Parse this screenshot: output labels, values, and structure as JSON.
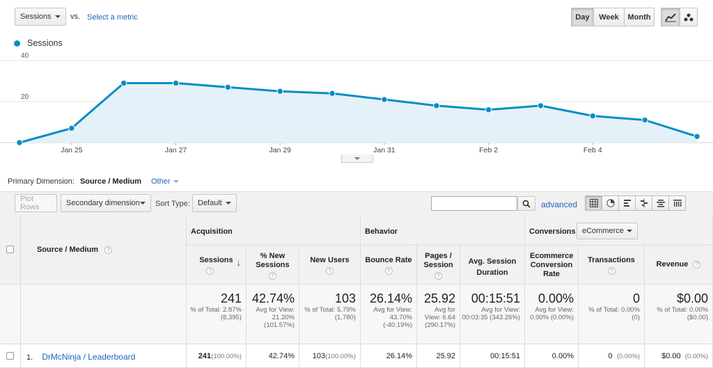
{
  "controls": {
    "metric": "Sessions",
    "vs": "vs.",
    "select_metric": "Select a metric",
    "period": [
      "Day",
      "Week",
      "Month"
    ],
    "active_period": "Day"
  },
  "legend": {
    "label": "Sessions",
    "color": "#058dc7"
  },
  "chart_data": {
    "type": "area",
    "series": [
      {
        "name": "Sessions",
        "values": [
          0,
          7,
          29,
          29,
          27,
          25,
          24,
          21,
          18,
          16,
          18,
          13,
          11,
          3
        ]
      }
    ],
    "x": [
      "Jan 24",
      "Jan 25",
      "Jan 26",
      "Jan 27",
      "Jan 28",
      "Jan 29",
      "Jan 30",
      "Jan 31",
      "Feb 1",
      "Feb 2",
      "Feb 3",
      "Feb 4",
      "Feb 5",
      "Feb 6"
    ],
    "tick_labels": [
      "Jan 25",
      "Jan 27",
      "Jan 29",
      "Jan 31",
      "Feb 2",
      "Feb 4"
    ],
    "y_ticks": [
      "40",
      "20"
    ],
    "ylim": [
      0,
      40
    ],
    "grid": true
  },
  "dimension": {
    "label": "Primary Dimension:",
    "current": "Source / Medium",
    "other": "Other"
  },
  "toolbar": {
    "plot_rows": "Plot Rows",
    "secondary_dimension": "Secondary dimension",
    "sort_type_label": "Sort Type:",
    "sort_value": "Default",
    "search_placeholder": "",
    "advanced": "advanced"
  },
  "table": {
    "dim_header": "Source / Medium",
    "groups": {
      "acquisition": "Acquisition",
      "behavior": "Behavior",
      "conversions": "Conversions",
      "conversion_select": "eCommerce"
    },
    "headers": {
      "sessions": "Sessions",
      "new_sessions": "% New Sessions",
      "new_users": "New Users",
      "bounce": "Bounce Rate",
      "pages": "Pages / Session",
      "duration": "Avg. Session Duration",
      "ecr": "Ecommerce Conversion Rate",
      "transactions": "Transactions",
      "revenue": "Revenue"
    },
    "totals": {
      "sessions": {
        "big": "241",
        "sub": "% of Total: 2.87% (8,395)"
      },
      "new_sessions": {
        "big": "42.74%",
        "sub": "Avg for View: 21.20% (101.57%)"
      },
      "new_users": {
        "big": "103",
        "sub": "% of Total: 5.79% (1,780)"
      },
      "bounce": {
        "big": "26.14%",
        "sub": "Avg for View: 43.70% (-40.19%)"
      },
      "pages": {
        "big": "25.92",
        "sub": "Avg for View: 6.64 (290.17%)"
      },
      "duration": {
        "big": "00:15:51",
        "sub": "Avg for View: 00:03:35 (343.26%)"
      },
      "ecr": {
        "big": "0.00%",
        "sub": "Avg for View: 0.00% (0.00%)"
      },
      "transactions": {
        "big": "0",
        "sub": "% of Total: 0.00% (0)"
      },
      "revenue": {
        "big": "$0.00",
        "sub": "% of Total: 0.00% ($0.00)"
      }
    },
    "rows": [
      {
        "index": "1.",
        "source": "DrMcNinja / Leaderboard",
        "sessions": "241",
        "sessions_pct": "(100.00%)",
        "new_sessions": "42.74%",
        "new_users": "103",
        "new_users_pct": "(100.00%)",
        "bounce": "26.14%",
        "pages": "25.92",
        "duration": "00:15:51",
        "ecr": "0.00%",
        "transactions": "0",
        "transactions_pct": "(0.00%)",
        "revenue": "$0.00",
        "revenue_pct": "(0.00%)"
      }
    ]
  }
}
